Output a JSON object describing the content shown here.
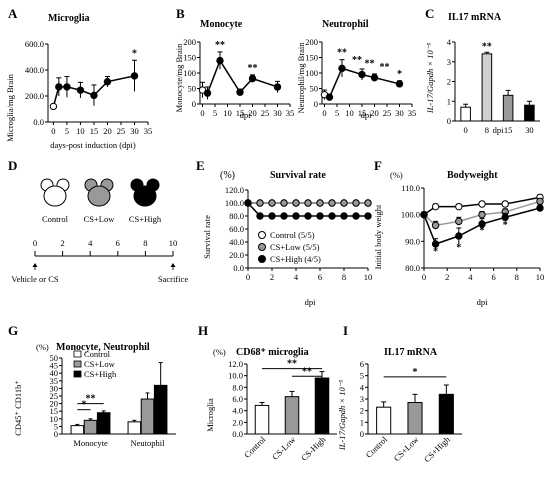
{
  "panels": {
    "A": {
      "letter": "A",
      "title": "Microglia",
      "ylabel": "Microglia/mg Brain",
      "xlabel": "days-post induction (dpi)"
    },
    "B1": {
      "letter": "B",
      "title": "Monocyte",
      "ylabel": "Monocyte/mg Brain",
      "xlabel": "dpi"
    },
    "B2": {
      "title": "Neutrophil",
      "ylabel": "Neutrophil/mg Brain",
      "xlabel": "dpi"
    },
    "C": {
      "letter": "C",
      "title": "IL17 mRNA",
      "ylabel": "IL-17/Gapdh × 10⁻⁵",
      "xlabel": "dpi"
    },
    "D": {
      "letter": "D",
      "groups": [
        "Control",
        "CS+Low",
        "CS+High"
      ],
      "ticks": [
        "0",
        "2",
        "4",
        "6",
        "8",
        "10"
      ],
      "left_label": "Vehicle or CS",
      "right_label": "Sacrifice"
    },
    "E": {
      "letter": "E",
      "title": "Survival rate",
      "ylabel": "Survival rate",
      "unit": "(%)",
      "xlabel": "dpi"
    },
    "F": {
      "letter": "F",
      "title": "Bodyweight",
      "ylabel": "Initial body weight",
      "unit": "(%)",
      "xlabel": "dpi"
    },
    "G": {
      "letter": "G",
      "title": "Monocyte, Neutrophil",
      "unit": "(%)",
      "ylabel": "CD45⁺ CD11b⁺"
    },
    "H": {
      "letter": "H",
      "title": "CD68⁺ microglia",
      "unit": "(%)",
      "ylabel": "Microglia"
    },
    "I": {
      "letter": "I",
      "title": "IL17 mRNA",
      "ylabel": "IL-17/Gapdh × 10⁻⁵"
    }
  },
  "colors": {
    "control": "#ffffff",
    "low": "#999999",
    "high": "#000000",
    "light_bar": "#d0d0d0"
  },
  "chart_data": [
    {
      "id": "A",
      "type": "line",
      "x": [
        0,
        2,
        5,
        10,
        15,
        20,
        30
      ],
      "y": [
        120,
        270,
        270,
        245,
        205,
        310,
        355
      ],
      "err": [
        0,
        70,
        80,
        60,
        80,
        40,
        120
      ],
      "open_first": true,
      "xticks": [
        0,
        5,
        10,
        15,
        20,
        25,
        30,
        35
      ],
      "yticks": [
        "0.0",
        "200.0",
        "400.0",
        "600.0"
      ],
      "ylim": [
        0,
        600
      ],
      "xlim": [
        -2,
        35
      ],
      "stars": [
        {
          "x": 30,
          "text": "*"
        }
      ]
    },
    {
      "id": "B1",
      "type": "line",
      "x": [
        0,
        2,
        7,
        15,
        20,
        30
      ],
      "y": [
        45,
        35,
        140,
        38,
        82,
        55
      ],
      "err": [
        25,
        20,
        28,
        10,
        12,
        18
      ],
      "open_first": true,
      "xticks": [
        0,
        5,
        10,
        15,
        20,
        25,
        30,
        35
      ],
      "yticks": [
        "0",
        "50",
        "100",
        "150",
        "200"
      ],
      "ylim": [
        0,
        200
      ],
      "xlim": [
        -1,
        35
      ],
      "stars": [
        {
          "x": 7,
          "text": "**"
        },
        {
          "x": 20,
          "text": "**"
        }
      ]
    },
    {
      "id": "B2",
      "type": "line",
      "x": [
        0,
        2,
        7,
        15,
        20,
        30
      ],
      "y": [
        30,
        22,
        115,
        95,
        85,
        65
      ],
      "err": [
        15,
        10,
        28,
        18,
        12,
        10
      ],
      "open_first": true,
      "xticks": [
        0,
        5,
        10,
        15,
        20,
        25,
        30,
        35
      ],
      "yticks": [
        "0",
        "50",
        "100",
        "150",
        "200"
      ],
      "ylim": [
        0,
        200
      ],
      "xlim": [
        -1,
        35
      ],
      "stars": [
        {
          "x": 7,
          "text": "**"
        },
        {
          "x": 13,
          "text": "**"
        },
        {
          "x": 18,
          "text": "**"
        },
        {
          "x": 24,
          "text": "**"
        },
        {
          "x": 30,
          "text": "*"
        }
      ]
    },
    {
      "id": "C",
      "type": "bar",
      "categories": [
        "0",
        "8",
        "15",
        "30"
      ],
      "values": [
        0.7,
        3.4,
        1.3,
        0.8
      ],
      "err": [
        0.15,
        0.08,
        0.25,
        0.2
      ],
      "fills": [
        "#ffffff",
        "#d0d0d0",
        "#999999",
        "#000000"
      ],
      "yticks": [
        "0",
        "1",
        "2",
        "3",
        "4"
      ],
      "ylim": [
        0,
        4
      ],
      "stars": [
        {
          "i": 1,
          "text": "**"
        }
      ]
    },
    {
      "id": "E",
      "type": "line",
      "x": [
        0,
        1,
        2,
        3,
        4,
        5,
        6,
        7,
        8,
        9,
        10
      ],
      "series": [
        {
          "name": "Control  (5/5)",
          "fill": "#ffffff",
          "values": [
            100,
            100,
            100,
            100,
            100,
            100,
            100,
            100,
            100,
            100,
            100
          ]
        },
        {
          "name": "CS+Low  (5/5)",
          "fill": "#999999",
          "values": [
            100,
            100,
            100,
            100,
            100,
            100,
            100,
            100,
            100,
            100,
            100
          ]
        },
        {
          "name": "CS+High (4/5)",
          "fill": "#000000",
          "values": [
            100,
            80,
            80,
            80,
            80,
            80,
            80,
            80,
            80,
            80,
            80
          ]
        }
      ],
      "xticks": [
        0,
        2,
        4,
        6,
        8,
        10
      ],
      "yticks": [
        "0.0",
        "20.0",
        "40.0",
        "60.0",
        "80.0",
        "100.0",
        "120.0"
      ],
      "ylim": [
        0,
        120
      ],
      "xlim": [
        0,
        10
      ]
    },
    {
      "id": "F",
      "type": "line",
      "x": [
        0,
        1,
        3,
        5,
        7,
        10
      ],
      "series": [
        {
          "name": "Control",
          "fill": "#ffffff",
          "values": [
            100,
            103,
            103,
            104,
            104,
            106.5
          ],
          "err": [
            0.3,
            1,
            1,
            1,
            1,
            1
          ]
        },
        {
          "name": "CS+Low",
          "fill": "#999999",
          "values": [
            100,
            96,
            97.5,
            100,
            101,
            105
          ],
          "err": [
            0.3,
            1.5,
            1.5,
            1.2,
            1.2,
            1
          ]
        },
        {
          "name": "CS+High",
          "fill": "#000000",
          "values": [
            100,
            89,
            92,
            96.5,
            99,
            102.5
          ],
          "err": [
            0.3,
            2,
            3,
            2,
            1.5,
            1.2
          ]
        }
      ],
      "xticks": [
        0,
        2,
        4,
        6,
        8,
        10
      ],
      "yticks": [
        "80.0",
        "90.0",
        "100.0",
        "110.0"
      ],
      "ylim": [
        80,
        110
      ],
      "xlim": [
        0,
        10
      ],
      "stars": [
        {
          "x": 1,
          "y": 85,
          "text": "*"
        },
        {
          "x": 3,
          "y": 86.5,
          "text": "*"
        },
        {
          "x": 5,
          "y": 93,
          "text": "*"
        },
        {
          "x": 7,
          "y": 95,
          "text": "*"
        }
      ]
    },
    {
      "id": "G",
      "type": "bar",
      "categories": [
        "Monocyte",
        "Neutophil"
      ],
      "series": [
        {
          "name": "Control",
          "fill": "#ffffff",
          "values": [
            5.5,
            8
          ],
          "err": [
            0.8,
            1
          ]
        },
        {
          "name": "CS+Low",
          "fill": "#999999",
          "values": [
            9,
            23
          ],
          "err": [
            1,
            4
          ]
        },
        {
          "name": "CS+High",
          "fill": "#000000",
          "values": [
            14,
            32
          ],
          "err": [
            1.2,
            15
          ]
        }
      ],
      "yticks": [
        "0",
        "5",
        "10",
        "15",
        "20",
        "25",
        "30",
        "35",
        "40",
        "45",
        "50"
      ],
      "ylim": [
        0,
        50
      ],
      "brackets": [
        {
          "from": 0,
          "to": 1,
          "y": 16,
          "text": "*"
        },
        {
          "from": 0,
          "to": 2,
          "y": 20,
          "text": "**"
        }
      ]
    },
    {
      "id": "H",
      "type": "bar",
      "categories": [
        "Control",
        "CS-Low",
        "CS-High"
      ],
      "values": [
        4.9,
        6.4,
        9.6
      ],
      "err": [
        0.5,
        0.9,
        1.1
      ],
      "fills": [
        "#ffffff",
        "#999999",
        "#000000"
      ],
      "yticks": [
        "0.0",
        "2.0",
        "4.0",
        "6.0",
        "8.0",
        "10.0",
        "12.0"
      ],
      "ylim": [
        0,
        12
      ],
      "brackets": [
        {
          "from": 0,
          "to": 2,
          "y": 11.2,
          "text": "**"
        },
        {
          "from": 1,
          "to": 2,
          "y": 9.9,
          "text": "**"
        }
      ]
    },
    {
      "id": "I",
      "type": "bar",
      "categories": [
        "Control",
        "CS+Low",
        "CS+High"
      ],
      "values": [
        2.3,
        2.7,
        3.4
      ],
      "err": [
        0.45,
        0.7,
        0.8
      ],
      "fills": [
        "#ffffff",
        "#999999",
        "#000000"
      ],
      "yticks": [
        "0",
        "1",
        "2",
        "3",
        "4",
        "5",
        "6"
      ],
      "ylim": [
        0,
        6
      ],
      "brackets": [
        {
          "from": 0,
          "to": 2,
          "y": 4.9,
          "text": "*"
        }
      ]
    }
  ]
}
